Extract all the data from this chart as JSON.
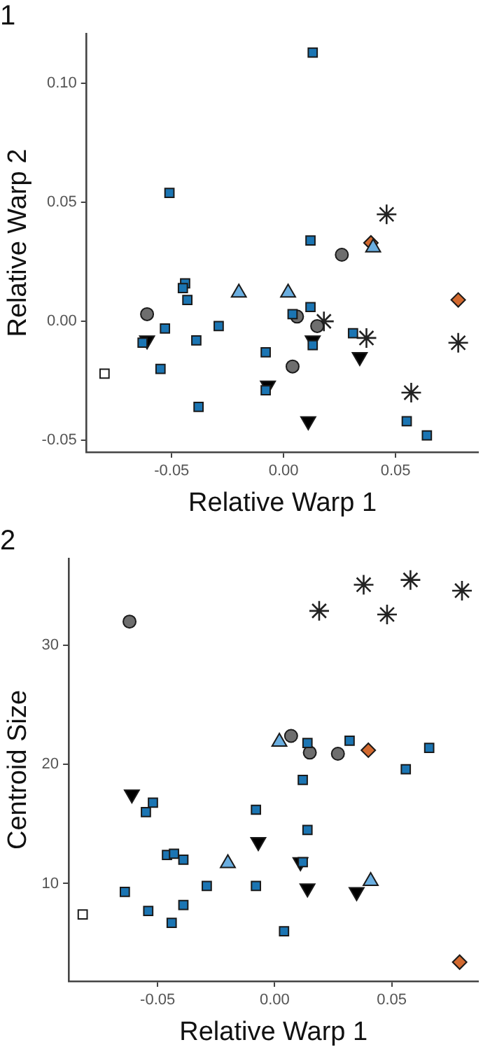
{
  "chart_data": [
    {
      "type": "scatter",
      "title": "1",
      "xlabel": "Relative Warp 1",
      "ylabel": "Relative Warp 2",
      "xlim": [
        -0.088,
        0.087
      ],
      "ylim": [
        -0.055,
        0.121
      ],
      "xticks": [
        {
          "value": -0.05,
          "label": "-0.05"
        },
        {
          "value": 0,
          "label": "0.00"
        },
        {
          "value": 0.05,
          "label": "0.05"
        }
      ],
      "yticks": [
        {
          "value": -0.05,
          "label": "-0.05"
        },
        {
          "value": 0,
          "label": "0.00"
        },
        {
          "value": 0.05,
          "label": "0.05"
        },
        {
          "value": 0.1,
          "label": "0.10"
        }
      ],
      "grid": false,
      "legend": false,
      "series": [
        {
          "color": "#1b75b3",
          "marker": "square",
          "x": [
            0.013,
            -0.051,
            0.012,
            -0.044,
            -0.045,
            -0.043,
            -0.053,
            -0.063,
            -0.039,
            -0.029,
            -0.055,
            -0.038,
            -0.008,
            -0.008,
            0.004,
            0.012,
            0.013,
            0.031,
            0.055,
            0.064
          ],
          "values": [
            0.113,
            0.054,
            0.034,
            0.016,
            0.014,
            0.009,
            -0.003,
            -0.009,
            -0.008,
            -0.002,
            -0.02,
            -0.036,
            -0.013,
            -0.029,
            0.003,
            0.006,
            -0.01,
            -0.005,
            -0.042,
            -0.048
          ]
        },
        {
          "color": "#6aaee0",
          "marker": "triangle",
          "x": [
            -0.02,
            0.002,
            0.04
          ],
          "values": [
            0.012,
            0.012,
            0.031
          ]
        },
        {
          "color": "#6e6e6e",
          "marker": "circle",
          "x": [
            -0.061,
            0.006,
            0.015,
            0.004,
            0.026
          ],
          "values": [
            0.003,
            0.002,
            -0.002,
            -0.019,
            0.028
          ]
        },
        {
          "color": "#000000",
          "marker": "triangle_down",
          "x": [
            -0.061,
            -0.007,
            0.013,
            0.011,
            0.034
          ],
          "values": [
            -0.008,
            -0.027,
            -0.008,
            -0.042,
            -0.015
          ]
        },
        {
          "color": "#222222",
          "marker": "cross",
          "x": [
            0.018,
            0.037,
            0.078,
            0.057,
            0.046
          ],
          "values": [
            0.0,
            -0.007,
            -0.009,
            -0.03,
            0.045
          ]
        },
        {
          "color": "#d2692f",
          "marker": "diamond",
          "x": [
            0.039,
            0.078
          ],
          "values": [
            0.033,
            0.009
          ]
        },
        {
          "color": "#ffffff",
          "marker": "square",
          "x": [
            -0.08
          ],
          "values": [
            -0.022
          ]
        }
      ]
    },
    {
      "type": "scatter",
      "title": "2",
      "xlabel": "Relative Warp 1",
      "ylabel": "Centroid Size",
      "xlim": [
        -0.088,
        0.087
      ],
      "ylim": [
        1.8,
        37.3
      ],
      "xticks": [
        {
          "value": -0.05,
          "label": "-0.05"
        },
        {
          "value": 0,
          "label": "0.00"
        },
        {
          "value": 0.05,
          "label": "0.05"
        }
      ],
      "yticks": [
        10,
        20,
        30
      ],
      "grid": false,
      "legend": false,
      "series": [
        {
          "color": "#1b75b3",
          "marker": "square",
          "x": [
            0.014,
            0.032,
            0.066,
            0.056,
            0.012,
            -0.008,
            -0.052,
            -0.055,
            0.014,
            -0.046,
            -0.043,
            -0.039,
            -0.029,
            -0.008,
            -0.064,
            -0.054,
            -0.039,
            -0.044,
            0.004,
            0.012
          ],
          "values": [
            21.8,
            22.0,
            21.4,
            19.6,
            18.7,
            16.2,
            16.8,
            16.0,
            14.5,
            12.4,
            12.5,
            12.0,
            9.8,
            9.8,
            9.3,
            7.7,
            8.2,
            6.7,
            6.0,
            11.8
          ]
        },
        {
          "color": "#6aaee0",
          "marker": "triangle",
          "x": [
            -0.02,
            0.002,
            0.041
          ],
          "values": [
            11.7,
            21.9,
            10.2
          ]
        },
        {
          "color": "#6e6e6e",
          "marker": "circle",
          "x": [
            -0.062,
            0.007,
            0.015,
            0.027
          ],
          "values": [
            32.0,
            22.4,
            21.0,
            20.9
          ]
        },
        {
          "color": "#000000",
          "marker": "triangle_down",
          "x": [
            -0.061,
            -0.007,
            0.011,
            0.014,
            0.035
          ],
          "values": [
            17.5,
            13.5,
            11.8,
            9.6,
            9.3
          ]
        },
        {
          "color": "#222222",
          "marker": "cross",
          "x": [
            0.019,
            0.038,
            0.048,
            0.058,
            0.08
          ],
          "values": [
            32.9,
            35.1,
            32.6,
            35.5,
            34.6
          ]
        },
        {
          "color": "#d2692f",
          "marker": "diamond",
          "x": [
            0.04,
            0.079
          ],
          "values": [
            21.2,
            3.4
          ]
        },
        {
          "color": "#ffffff",
          "marker": "square",
          "x": [
            -0.082
          ],
          "values": [
            7.4
          ]
        }
      ]
    }
  ]
}
